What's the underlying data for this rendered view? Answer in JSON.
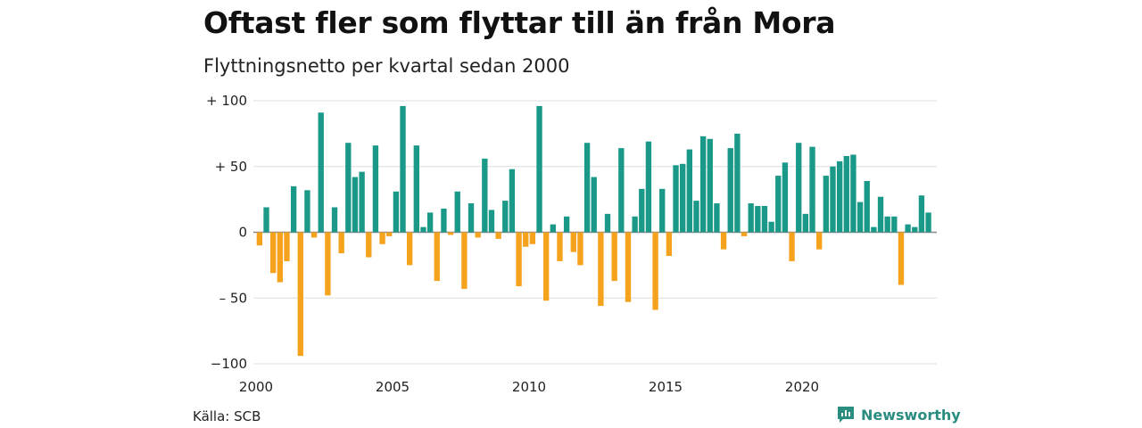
{
  "chart_data": {
    "type": "bar",
    "title": "Oftast fler som flyttar till än från Mora",
    "subtitle": "Flyttningsnetto per kvartal sedan 2000",
    "x_start": 2000,
    "y_ticks": [
      "+ 100",
      "+  50",
      "0",
      "– 50",
      "−100"
    ],
    "y_tick_values": [
      100,
      50,
      0,
      -50,
      -100
    ],
    "x_ticks": [
      "2000",
      "2005",
      "2010",
      "2015",
      "2020"
    ],
    "x_tick_values": [
      2000,
      2005,
      2010,
      2015,
      2020
    ],
    "ylim": [
      -100,
      100
    ],
    "grid": true,
    "colors": {
      "positive": "#1a9988",
      "negative": "#f5a21d",
      "grid": "#dddddd",
      "axis": "#888888"
    },
    "values": [
      -10,
      19,
      -31,
      -38,
      -22,
      35,
      -94,
      32,
      -4,
      91,
      -48,
      19,
      -16,
      68,
      42,
      46,
      -19,
      66,
      -9,
      -3,
      31,
      96,
      -25,
      66,
      4,
      15,
      -37,
      18,
      -2,
      31,
      -43,
      22,
      -4,
      56,
      17,
      -5,
      24,
      48,
      -41,
      -11,
      -9,
      96,
      -52,
      6,
      -22,
      12,
      -15,
      -25,
      68,
      42,
      -56,
      14,
      -37,
      64,
      -53,
      12,
      33,
      69,
      -59,
      33,
      -18,
      51,
      52,
      63,
      24,
      73,
      71,
      22,
      -13,
      64,
      75,
      -3,
      22,
      20,
      20,
      8,
      43,
      53,
      -22,
      68,
      14,
      65,
      -13,
      43,
      50,
      54,
      58,
      59,
      23,
      39,
      4,
      27,
      12,
      12,
      -40,
      6,
      4,
      28,
      15
    ]
  },
  "footer": {
    "source": "Källa: SCB",
    "brand": "Newsworthy"
  }
}
